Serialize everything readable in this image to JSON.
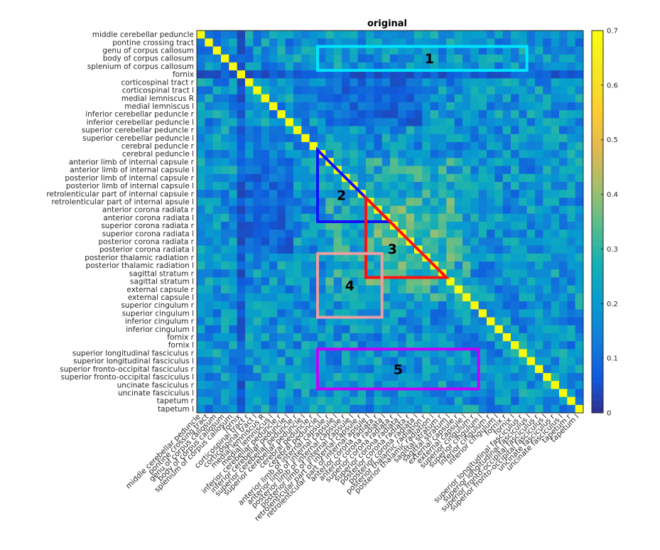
{
  "chart_data": {
    "type": "heatmap",
    "title": "original",
    "labels": [
      "middle cerebellar peduncle",
      "pontine crossing tract",
      "genu of corpus callosum",
      "body of corpus callosum",
      "splenium of corpus callosum",
      "fornix",
      "corticospinal tract r",
      "corticospinal tract l",
      "medial lemniscus R",
      "medial lemniscus l",
      "inferior cerebellar peduncle r",
      "inferior cerebellar peduncle l",
      "superior cerebellar peduncle r",
      "superior cerebellar peduncle l",
      "cerebral peduncle r",
      "cerebral peduncle l",
      "anterior limb of internal capsule r",
      "anterior limb of internal capsule l",
      "posterior limb of internal capsule r",
      "posterior limb of internal capsule l",
      "retrolenticular part of internal capsule r",
      "retrolenticular part of internal apsule l",
      "anterior corona radiata r",
      "anterior corona radiata l",
      "superior corona radiata r",
      "superior corona radiata l",
      "posterior corona radiata r",
      "posterior corona radiata l",
      "posterior thalamic radiation r",
      "posterior thalamic radiation l",
      "sagittal stratum r",
      "sagittal stratum l",
      "external capsule r",
      "external capsule l",
      "superior cingulum r",
      "superior cingulum l",
      "inferior cingulum r",
      "inferior cingulum l",
      "fornix r",
      "fornix l",
      "superior longitudinal fasciculus r",
      "superior longitudinal fasciculus l",
      "superior fronto-occipital fasciculus r",
      "superior fronto-occipital fasciculus l",
      "uncinate fasciculus r",
      "uncinate fasciculus l",
      "tapetum r",
      "tapetum l"
    ],
    "colorbar": {
      "min": 0,
      "max": 0.7,
      "ticks": [
        "0",
        "0.1",
        "0.2",
        "0.3",
        "0.4",
        "0.5",
        "0.6",
        "0.7"
      ],
      "colormap": "parula"
    },
    "values_note_rows": [],
    "diagonal_value": 0.7,
    "highlights": [
      {
        "label": "1",
        "color": "#00e5ff",
        "shape": "rectangle",
        "rows": [
          2,
          5
        ],
        "cols": [
          15,
          41
        ]
      },
      {
        "label": "2",
        "color": "#1010ff",
        "shape": "triangle",
        "rows": [
          15,
          24
        ],
        "cols": [
          15,
          24
        ]
      },
      {
        "label": "3",
        "color": "#ff1010",
        "shape": "triangle",
        "rows": [
          21,
          31
        ],
        "cols": [
          21,
          31
        ]
      },
      {
        "label": "4",
        "color": "#e8a0a0",
        "shape": "rectangle",
        "rows": [
          28,
          36
        ],
        "cols": [
          15,
          23
        ]
      },
      {
        "label": "5",
        "color": "#c000ff",
        "shape": "rectangle",
        "rows": [
          40,
          45
        ],
        "cols": [
          15,
          35
        ]
      }
    ]
  }
}
